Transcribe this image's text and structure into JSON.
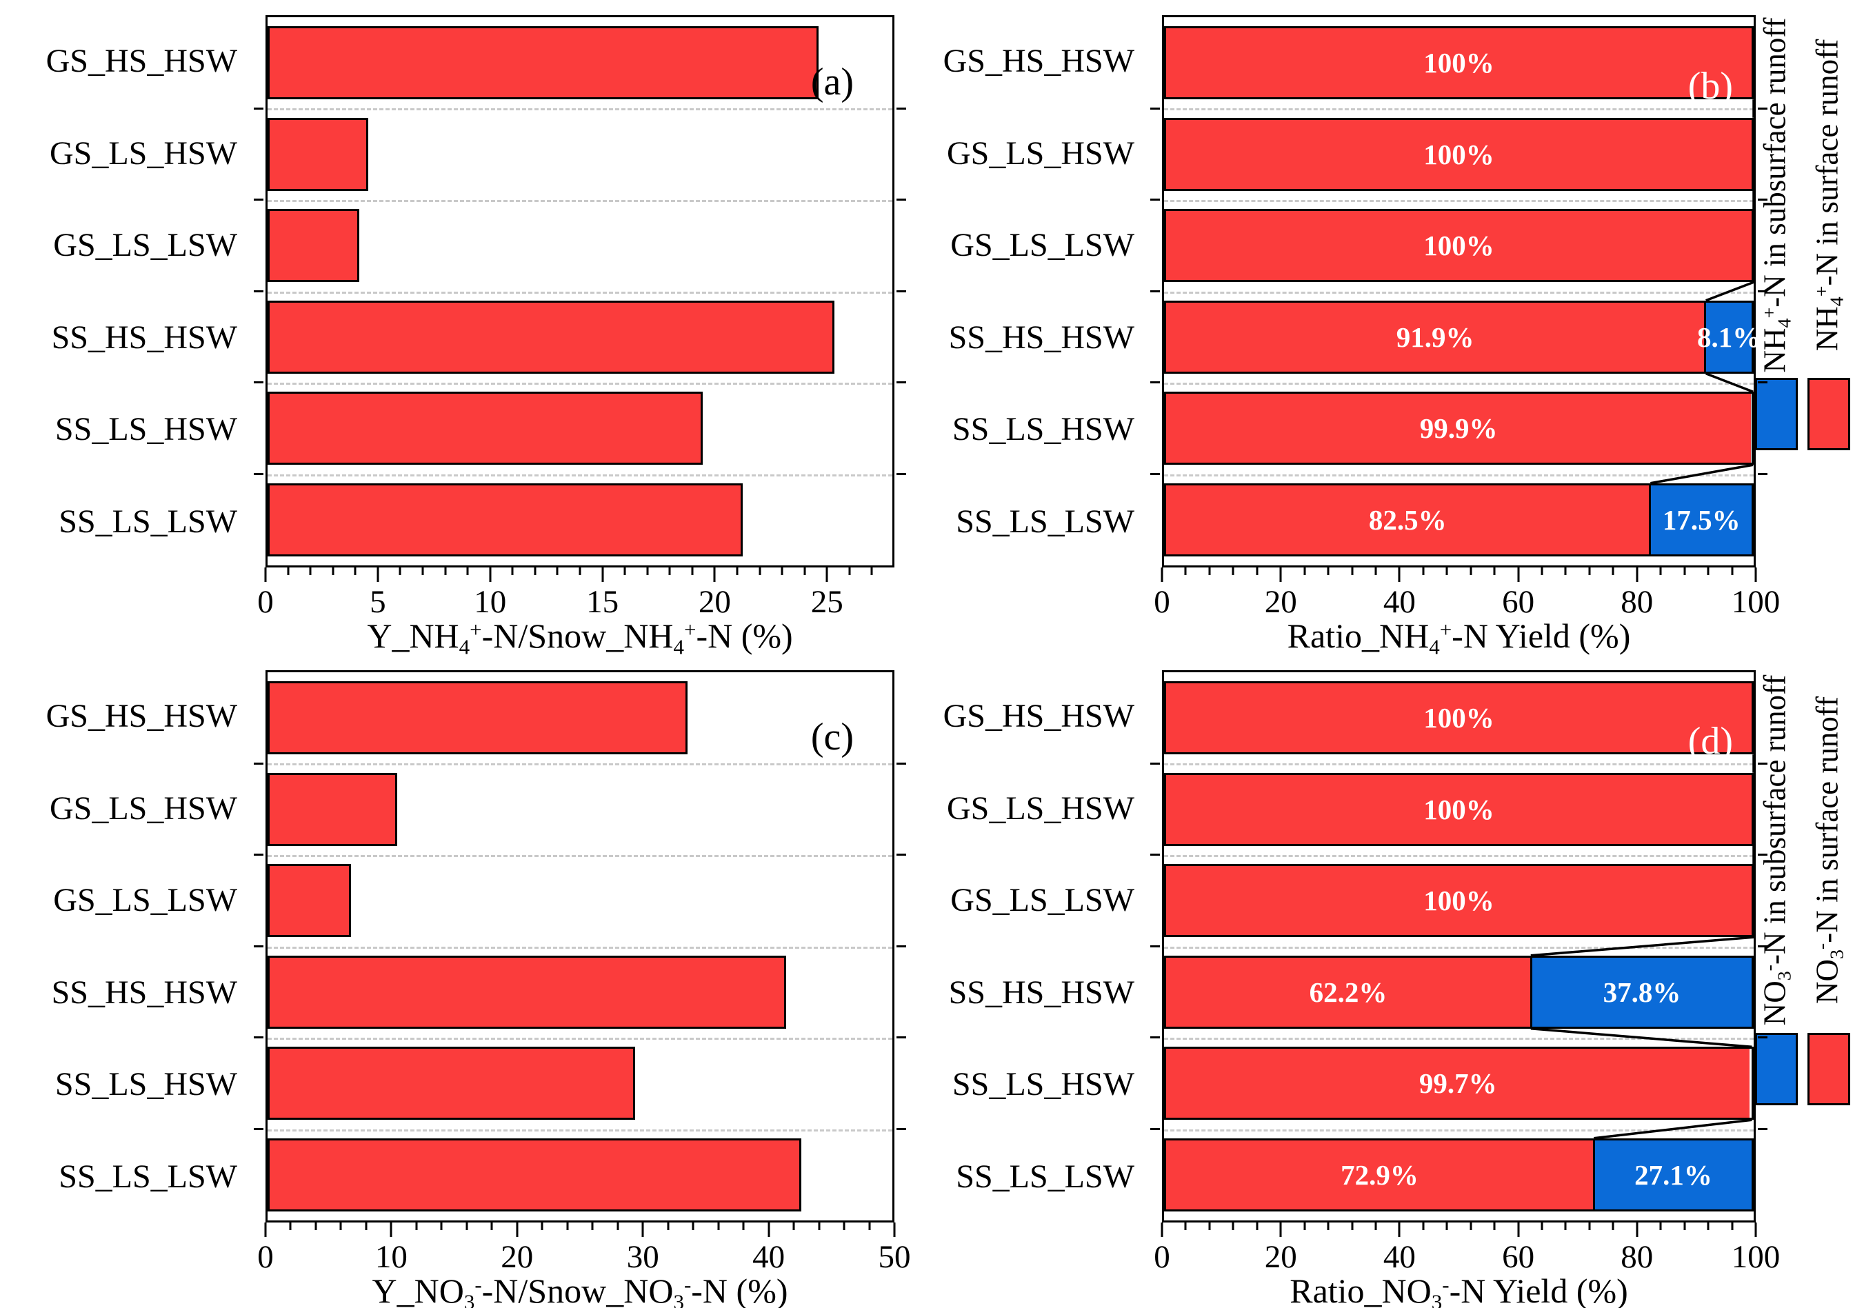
{
  "colors": {
    "surface_red": "#fb3c3c",
    "subsurface_blue": "#0b6bd8",
    "grid_dash": "#c9c9c9",
    "frame": "#000000",
    "bar_label_text": "#ffffff",
    "background": "#ffffff"
  },
  "chart_data": [
    {
      "id": "a",
      "type": "bar",
      "panel_letter": "(a)",
      "panel_letter_color": "#000000",
      "categories": [
        "GS_HS_HSW",
        "GS_LS_HSW",
        "GS_LS_LSW",
        "SS_HS_HSW",
        "SS_LS_HSW",
        "SS_LS_LSW"
      ],
      "values": [
        24.7,
        4.5,
        4.1,
        25.4,
        19.5,
        21.3
      ],
      "bar_color": "surface_red",
      "xlabel": "Y_NH4+-N/Snow_NH4+-N (%)",
      "xlabel_rich": [
        {
          "t": "Y_NH",
          "s": "n"
        },
        {
          "t": "4",
          "s": "sub"
        },
        {
          "t": "+",
          "s": "sup"
        },
        {
          "t": "-N/Snow_NH",
          "s": "n"
        },
        {
          "t": "4",
          "s": "sub"
        },
        {
          "t": "+",
          "s": "sup"
        },
        {
          "t": "-N (%)",
          "s": "n"
        }
      ],
      "xlim": [
        0,
        28
      ],
      "xticks": [
        0,
        5,
        10,
        15,
        20,
        25
      ],
      "minor_tick_step": 1,
      "grid": "dashed horizontal lines at category boundaries"
    },
    {
      "id": "b",
      "type": "stacked-bar",
      "panel_letter": "(b)",
      "panel_letter_color": "#ffffff",
      "categories": [
        "GS_HS_HSW",
        "GS_LS_HSW",
        "GS_LS_LSW",
        "SS_HS_HSW",
        "SS_LS_HSW",
        "SS_LS_LSW"
      ],
      "series": [
        {
          "name": "NH4+-N in surface runoff",
          "color": "surface_red",
          "values": [
            100,
            100,
            100,
            91.9,
            99.9,
            82.5
          ],
          "data_labels": [
            "100%",
            "100%",
            "100%",
            "91.9%",
            "99.9%",
            "82.5%"
          ]
        },
        {
          "name": "NH4+-N in subsurface runoff",
          "color": "subsurface_blue",
          "values": [
            0,
            0,
            0,
            8.1,
            0.1,
            17.5
          ],
          "data_labels": [
            "",
            "",
            "",
            "8.1%",
            "",
            "17.5%"
          ]
        }
      ],
      "connector_lines": true,
      "xlabel": "Ratio_NH4+-N Yield (%)",
      "xlabel_rich": [
        {
          "t": "Ratio_NH",
          "s": "n"
        },
        {
          "t": "4",
          "s": "sub"
        },
        {
          "t": "+",
          "s": "sup"
        },
        {
          "t": "-N Yield (%)",
          "s": "n"
        }
      ],
      "xlim": [
        0,
        100
      ],
      "xticks": [
        0,
        20,
        40,
        60,
        80,
        100
      ],
      "minor_tick_step": 4,
      "grid": "dashed horizontal lines at category boundaries",
      "legend": {
        "position": "right-of-plot, rotated 90deg, swatches below text",
        "entries": [
          {
            "label": "NH4+-N in subsurface runoff",
            "color": "subsurface_blue",
            "rich": [
              {
                "t": "NH",
                "s": "n"
              },
              {
                "t": "4",
                "s": "sub"
              },
              {
                "t": "+",
                "s": "sup"
              },
              {
                "t": "-N in subsurface runoff",
                "s": "n"
              }
            ]
          },
          {
            "label": "NH4+-N in surface runoff",
            "color": "surface_red",
            "rich": [
              {
                "t": "NH",
                "s": "n"
              },
              {
                "t": "4",
                "s": "sub"
              },
              {
                "t": "+",
                "s": "sup"
              },
              {
                "t": "-N in surface runoff",
                "s": "n"
              }
            ]
          }
        ]
      }
    },
    {
      "id": "c",
      "type": "bar",
      "panel_letter": "(c)",
      "panel_letter_color": "#000000",
      "categories": [
        "GS_HS_HSW",
        "GS_LS_HSW",
        "GS_LS_LSW",
        "SS_HS_HSW",
        "SS_LS_HSW",
        "SS_LS_LSW"
      ],
      "values": [
        33.6,
        10.4,
        6.7,
        41.5,
        29.4,
        42.7
      ],
      "bar_color": "surface_red",
      "xlabel": "Y_NO3--N/Snow_NO3--N (%)",
      "xlabel_rich": [
        {
          "t": "Y_NO",
          "s": "n"
        },
        {
          "t": "3",
          "s": "sub"
        },
        {
          "t": "-",
          "s": "sup"
        },
        {
          "t": "-N/Snow_NO",
          "s": "n"
        },
        {
          "t": "3",
          "s": "sub"
        },
        {
          "t": "-",
          "s": "sup"
        },
        {
          "t": "-N (%)",
          "s": "n"
        }
      ],
      "xlim": [
        0,
        50
      ],
      "xticks": [
        0,
        10,
        20,
        30,
        40,
        50
      ],
      "minor_tick_step": 2,
      "grid": "dashed horizontal lines at category boundaries"
    },
    {
      "id": "d",
      "type": "stacked-bar",
      "panel_letter": "(d)",
      "panel_letter_color": "#ffffff",
      "categories": [
        "GS_HS_HSW",
        "GS_LS_HSW",
        "GS_LS_LSW",
        "SS_HS_HSW",
        "SS_LS_HSW",
        "SS_LS_LSW"
      ],
      "series": [
        {
          "name": "NO3--N in surface runoff",
          "color": "surface_red",
          "values": [
            100,
            100,
            100,
            62.2,
            99.7,
            72.9
          ],
          "data_labels": [
            "100%",
            "100%",
            "100%",
            "62.2%",
            "99.7%",
            "72.9%"
          ]
        },
        {
          "name": "NO3--N in subsurface runoff",
          "color": "subsurface_blue",
          "values": [
            0,
            0,
            0,
            37.8,
            0.3,
            27.1
          ],
          "data_labels": [
            "",
            "",
            "",
            "37.8%",
            "",
            "27.1%"
          ]
        }
      ],
      "connector_lines": true,
      "xlabel": "Ratio_NO3--N Yield (%)",
      "xlabel_rich": [
        {
          "t": "Ratio_NO",
          "s": "n"
        },
        {
          "t": "3",
          "s": "sub"
        },
        {
          "t": "-",
          "s": "sup"
        },
        {
          "t": "-N Yield (%)",
          "s": "n"
        }
      ],
      "xlim": [
        0,
        100
      ],
      "xticks": [
        0,
        20,
        40,
        60,
        80,
        100
      ],
      "minor_tick_step": 4,
      "grid": "dashed horizontal lines at category boundaries",
      "legend": {
        "position": "right-of-plot, rotated 90deg, swatches below text",
        "entries": [
          {
            "label": "NO3--N in subsurface runoff",
            "color": "subsurface_blue",
            "rich": [
              {
                "t": "NO",
                "s": "n"
              },
              {
                "t": "3",
                "s": "sub"
              },
              {
                "t": "-",
                "s": "sup"
              },
              {
                "t": "-N in subsurface runoff",
                "s": "n"
              }
            ]
          },
          {
            "label": "NO3--N in surface runoff",
            "color": "surface_red",
            "rich": [
              {
                "t": "NO",
                "s": "n"
              },
              {
                "t": "3",
                "s": "sub"
              },
              {
                "t": "-",
                "s": "sup"
              },
              {
                "t": "-N in surface runoff",
                "s": "n"
              }
            ]
          }
        ]
      }
    }
  ]
}
